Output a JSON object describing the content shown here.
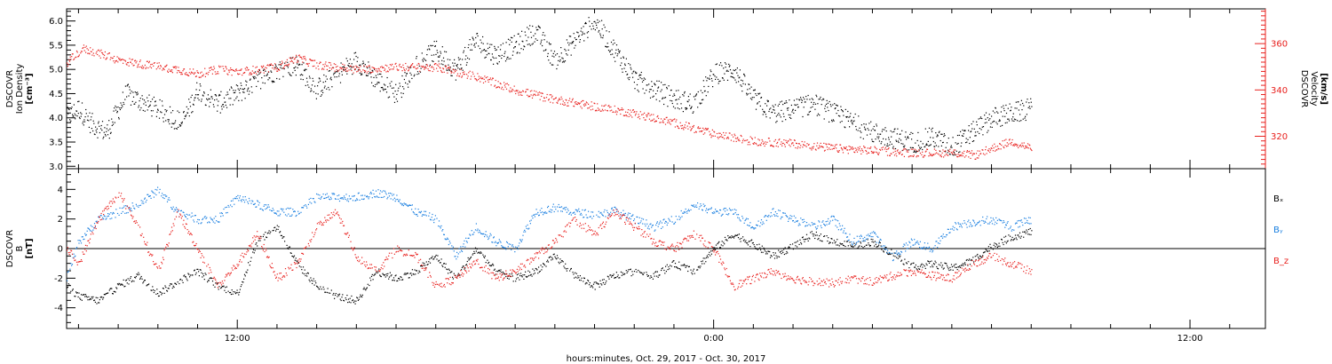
{
  "chart_data": {
    "xlabel": "hours:minutes, Oct. 29, 2017 - Oct. 30, 2017",
    "x_range_hours": [
      7.7,
      37.9
    ],
    "x_ticks": [
      {
        "h": 12,
        "label": "12:00"
      },
      {
        "h": 24,
        "label": "0:00"
      },
      {
        "h": 36,
        "label": "12:00"
      }
    ],
    "panels": [
      {
        "id": "plasma",
        "type": "scatter",
        "left_axis": {
          "label_lines": [
            "DSCOVR",
            "Ion Density",
            "[cm⁻³]"
          ],
          "range": [
            2.95,
            6.25
          ],
          "ticks": [
            3.0,
            3.5,
            4.0,
            4.5,
            5.0,
            5.5,
            6.0
          ],
          "tick_labels": [
            "3.0",
            "3.5",
            "4.0",
            "4.5",
            "5.0",
            "5.5",
            "6.0"
          ],
          "color": "#000000"
        },
        "right_axis": {
          "label_lines": [
            "DSCOVR",
            "Velocity",
            "[km/s]"
          ],
          "range": [
            306,
            375
          ],
          "ticks": [
            320,
            340,
            360
          ],
          "tick_labels": [
            "320",
            "340",
            "360"
          ],
          "color": "#e8211e"
        },
        "series": [
          {
            "axis": "left",
            "color": "#000000",
            "knots_hours": [
              7.7,
              8.0,
              8.3,
              8.7,
              9.2,
              9.7,
              10.2,
              10.6,
              11.0,
              11.5,
              12.0,
              12.5,
              13.0,
              13.5,
              14.0,
              14.5,
              15.0,
              15.5,
              16.0,
              16.5,
              17.0,
              17.5,
              18.0,
              18.5,
              19.0,
              19.5,
              20.0,
              20.5,
              21.0,
              21.5,
              22.0,
              22.5,
              23.0,
              23.5,
              24.0,
              24.5,
              25.0,
              25.5,
              26.0,
              26.5,
              27.0,
              27.5,
              28.0,
              28.5,
              29.0,
              29.5,
              30.0,
              30.5,
              31.0,
              31.5,
              32.0
            ],
            "knots_values": [
              4.0,
              4.2,
              3.9,
              3.7,
              4.5,
              4.3,
              4.1,
              3.9,
              4.6,
              4.3,
              4.5,
              4.8,
              5.0,
              5.1,
              4.6,
              4.9,
              5.2,
              4.8,
              4.5,
              5.1,
              5.4,
              5.0,
              5.6,
              5.3,
              5.5,
              5.8,
              5.2,
              5.6,
              6.0,
              5.4,
              4.8,
              4.6,
              4.4,
              4.3,
              4.9,
              5.0,
              4.4,
              4.1,
              4.2,
              4.3,
              4.1,
              3.9,
              3.7,
              3.6,
              3.5,
              3.6,
              3.4,
              3.7,
              4.0,
              4.1,
              4.2
            ],
            "noise": 0.22,
            "samples": 1800
          },
          {
            "axis": "right",
            "color": "#e8211e",
            "knots_hours": [
              7.7,
              8.1,
              8.5,
              9.0,
              9.7,
              10.5,
              11.0,
              11.5,
              12.0,
              13.0,
              13.5,
              14.0,
              14.5,
              15.0,
              16.0,
              17.0,
              18.0,
              19.0,
              20.0,
              21.0,
              22.0,
              23.0,
              24.0,
              25.0,
              26.0,
              27.0,
              28.0,
              29.0,
              30.0,
              30.6,
              31.0,
              31.5,
              32.0
            ],
            "knots_values": [
              352,
              358,
              356,
              353,
              351,
              349,
              347,
              349,
              348,
              350,
              354,
              351,
              350,
              349,
              350,
              350,
              346,
              340,
              336,
              333,
              330,
              326,
              321,
              318,
              317,
              315,
              314,
              313,
              313,
              312,
              315,
              318,
              315
            ],
            "noise": 1.8,
            "samples": 1500
          }
        ]
      },
      {
        "id": "mag",
        "type": "scatter",
        "left_axis": {
          "label_lines": [
            "DSCOVR",
            "B",
            "[nT]"
          ],
          "range": [
            -5.4,
            5.4
          ],
          "ticks": [
            -4,
            -2,
            0,
            2,
            4
          ],
          "tick_labels": [
            "-4",
            "-2",
            "0",
            "2",
            "4"
          ],
          "color": "#000000"
        },
        "zero_line": true,
        "legend": [
          {
            "text": "Bₓ",
            "color": "#000000"
          },
          {
            "text": "Bᵧ",
            "color": "#1a7fe0"
          },
          {
            "text": "B_z",
            "color": "#e8211e"
          }
        ],
        "series": [
          {
            "name": "Bx",
            "color": "#000000",
            "knots_hours": [
              7.7,
              8.0,
              8.5,
              9.0,
              9.5,
              10.0,
              10.5,
              11.0,
              11.5,
              12.0,
              12.5,
              13.0,
              13.5,
              14.0,
              14.5,
              15.0,
              15.5,
              16.0,
              16.5,
              17.0,
              17.5,
              18.0,
              18.5,
              19.0,
              19.5,
              20.0,
              20.5,
              21.0,
              21.5,
              22.0,
              22.5,
              23.0,
              23.5,
              24.0,
              24.5,
              25.0,
              25.5,
              26.0,
              26.5,
              27.0,
              27.5,
              28.0,
              28.5,
              29.0,
              29.5,
              30.0,
              30.5,
              31.0,
              31.5,
              32.0
            ],
            "knots_values": [
              -2.5,
              -3.2,
              -3.5,
              -2.5,
              -1.8,
              -3.0,
              -2.2,
              -1.5,
              -2.5,
              -3.0,
              0.5,
              1.5,
              -1.0,
              -2.5,
              -3.2,
              -3.5,
              -1.5,
              -2.0,
              -1.5,
              -0.5,
              -2.0,
              0.0,
              -1.5,
              -2.0,
              -1.5,
              -0.5,
              -1.8,
              -2.5,
              -1.8,
              -1.5,
              -1.8,
              -1.0,
              -1.5,
              0.0,
              1.0,
              0.3,
              -0.5,
              0.2,
              1.0,
              0.5,
              0.2,
              0.5,
              -0.3,
              -1.2,
              -1.0,
              -1.3,
              -0.8,
              0.2,
              0.8,
              1.2
            ],
            "noise": 0.25,
            "samples": 1300
          },
          {
            "name": "By",
            "color": "#1a7fe0",
            "knots_hours": [
              7.7,
              8.0,
              8.5,
              9.0,
              9.5,
              10.0,
              10.5,
              11.0,
              11.5,
              12.0,
              12.5,
              13.0,
              13.5,
              14.0,
              14.5,
              15.0,
              15.5,
              16.0,
              16.5,
              17.0,
              17.5,
              18.0,
              18.5,
              19.0,
              19.5,
              20.0,
              20.5,
              21.0,
              21.5,
              22.0,
              22.5,
              23.0,
              23.5,
              24.0,
              24.5,
              25.0,
              25.5,
              26.0,
              26.5,
              27.0,
              27.5,
              28.0,
              28.5,
              29.0,
              29.5,
              30.0,
              30.5,
              31.0,
              31.5,
              32.0
            ],
            "knots_values": [
              -2.0,
              0.5,
              2.0,
              2.5,
              3.0,
              4.0,
              2.5,
              2.0,
              2.0,
              3.5,
              3.0,
              2.5,
              2.5,
              3.5,
              3.5,
              3.5,
              3.8,
              3.5,
              2.5,
              2.0,
              -0.5,
              1.5,
              0.5,
              0.0,
              2.5,
              2.8,
              2.5,
              2.3,
              2.6,
              2.0,
              1.5,
              2.0,
              3.0,
              2.5,
              2.5,
              1.5,
              2.5,
              2.0,
              1.5,
              2.0,
              0.5,
              1.0,
              -0.5,
              0.5,
              0.0,
              1.5,
              1.8,
              2.0,
              1.5,
              2.0
            ],
            "noise": 0.28,
            "samples": 1300
          },
          {
            "name": "Bz",
            "color": "#e8211e",
            "knots_hours": [
              7.7,
              8.0,
              8.5,
              9.0,
              9.5,
              10.0,
              10.5,
              11.0,
              11.5,
              12.0,
              12.5,
              13.0,
              13.5,
              14.0,
              14.5,
              15.0,
              15.5,
              16.0,
              16.5,
              17.0,
              17.5,
              18.0,
              18.5,
              19.0,
              19.5,
              20.0,
              20.5,
              21.0,
              21.5,
              22.0,
              22.5,
              23.0,
              23.5,
              24.0,
              24.5,
              25.0,
              25.5,
              26.0,
              26.5,
              27.0,
              27.5,
              28.0,
              28.5,
              29.0,
              29.5,
              30.0,
              30.5,
              31.0,
              31.5,
              32.0
            ],
            "knots_values": [
              0.0,
              -1.0,
              2.0,
              3.8,
              1.5,
              -1.5,
              2.5,
              0.0,
              -2.5,
              -1.0,
              1.0,
              -2.0,
              -1.0,
              1.5,
              2.5,
              -0.5,
              -1.5,
              0.0,
              -0.5,
              -2.5,
              -2.0,
              -0.8,
              -2.0,
              -1.5,
              -0.5,
              0.5,
              2.0,
              1.0,
              2.5,
              1.5,
              0.5,
              0.0,
              1.0,
              0.0,
              -2.5,
              -2.0,
              -1.5,
              -2.0,
              -2.2,
              -2.3,
              -2.0,
              -2.2,
              -1.8,
              -1.5,
              -1.8,
              -2.0,
              -1.0,
              -0.5,
              -1.0,
              -1.5
            ],
            "noise": 0.28,
            "samples": 1300
          }
        ]
      }
    ]
  }
}
